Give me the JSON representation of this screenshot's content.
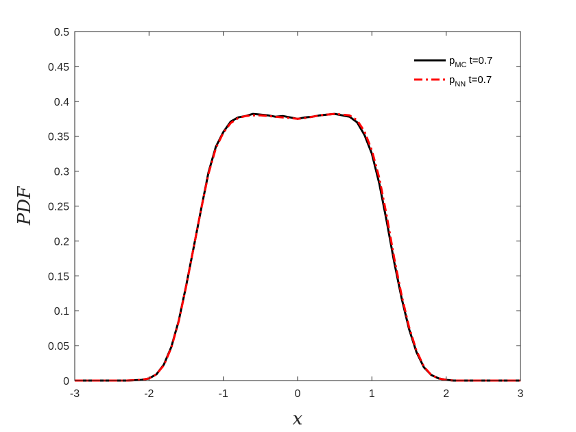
{
  "chart_data": {
    "type": "line",
    "xlabel": "x",
    "ylabel": "PDF",
    "xlim": [
      -3,
      3
    ],
    "ylim": [
      0,
      0.5
    ],
    "xticks": [
      "-3",
      "-2",
      "-1",
      "0",
      "1",
      "2",
      "3"
    ],
    "yticks": [
      "0",
      "0.05",
      "0.1",
      "0.15",
      "0.2",
      "0.25",
      "0.3",
      "0.35",
      "0.4",
      "0.45",
      "0.5"
    ],
    "grid": false,
    "legend_position": "top-right",
    "series": [
      {
        "name": "p",
        "subscript": "MC",
        "suffix": " t=0.7",
        "color": "#000000",
        "style": "solid",
        "x": [
          -3.0,
          -2.6,
          -2.3,
          -2.1,
          -2.0,
          -1.9,
          -1.8,
          -1.7,
          -1.6,
          -1.5,
          -1.4,
          -1.3,
          -1.2,
          -1.1,
          -1.0,
          -0.9,
          -0.8,
          -0.7,
          -0.6,
          -0.5,
          -0.4,
          -0.3,
          -0.2,
          -0.1,
          0.0,
          0.1,
          0.2,
          0.3,
          0.4,
          0.5,
          0.6,
          0.7,
          0.8,
          0.9,
          1.0,
          1.1,
          1.2,
          1.3,
          1.4,
          1.5,
          1.6,
          1.7,
          1.8,
          1.9,
          2.0,
          2.1,
          2.3,
          2.6,
          3.0
        ],
        "y": [
          0.0,
          0.0,
          0.0,
          0.001,
          0.003,
          0.009,
          0.023,
          0.048,
          0.086,
          0.136,
          0.19,
          0.245,
          0.298,
          0.335,
          0.356,
          0.371,
          0.377,
          0.379,
          0.382,
          0.381,
          0.38,
          0.378,
          0.379,
          0.377,
          0.375,
          0.377,
          0.378,
          0.38,
          0.381,
          0.382,
          0.38,
          0.378,
          0.37,
          0.352,
          0.325,
          0.282,
          0.228,
          0.17,
          0.118,
          0.074,
          0.041,
          0.019,
          0.008,
          0.003,
          0.001,
          0.0,
          0.0,
          0.0,
          0.0
        ]
      },
      {
        "name": "p",
        "subscript": "NN",
        "suffix": " t=0.7",
        "color": "#ff0000",
        "style": "dashdot",
        "x": [
          -3.0,
          -2.6,
          -2.3,
          -2.1,
          -2.0,
          -1.9,
          -1.8,
          -1.7,
          -1.6,
          -1.5,
          -1.4,
          -1.3,
          -1.2,
          -1.1,
          -1.0,
          -0.9,
          -0.8,
          -0.7,
          -0.6,
          -0.5,
          -0.4,
          -0.3,
          -0.2,
          -0.1,
          0.0,
          0.1,
          0.2,
          0.3,
          0.4,
          0.5,
          0.6,
          0.7,
          0.8,
          0.9,
          1.0,
          1.1,
          1.2,
          1.3,
          1.4,
          1.5,
          1.6,
          1.7,
          1.8,
          1.9,
          2.0,
          2.1,
          2.3,
          2.6,
          3.0
        ],
        "y": [
          0.0,
          0.0,
          0.0,
          0.001,
          0.003,
          0.009,
          0.022,
          0.047,
          0.085,
          0.135,
          0.19,
          0.245,
          0.296,
          0.333,
          0.355,
          0.369,
          0.376,
          0.379,
          0.38,
          0.38,
          0.379,
          0.378,
          0.377,
          0.376,
          0.375,
          0.376,
          0.378,
          0.38,
          0.381,
          0.382,
          0.381,
          0.38,
          0.373,
          0.357,
          0.33,
          0.29,
          0.236,
          0.176,
          0.122,
          0.077,
          0.043,
          0.02,
          0.008,
          0.003,
          0.001,
          0.0,
          0.0,
          0.0,
          0.0
        ]
      }
    ]
  }
}
